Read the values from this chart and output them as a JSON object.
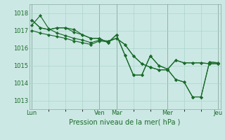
{
  "xlabel": "Pression niveau de la mer( hPa )",
  "background_color": "#cce8e4",
  "grid_color": "#aad4ce",
  "line_color": "#1a6b2a",
  "vline_color": "#556655",
  "ylim": [
    1012.5,
    1018.5
  ],
  "yticks": [
    1013,
    1014,
    1015,
    1016,
    1017,
    1018
  ],
  "day_labels": [
    "Lun",
    "Ven",
    "Mar",
    "Mer",
    "Jeu"
  ],
  "day_tick_positions": [
    0,
    8,
    10,
    16,
    22
  ],
  "vline_positions": [
    0,
    8,
    10,
    16,
    22
  ],
  "n_points": 23,
  "series": [
    [
      1017.3,
      1017.85,
      1017.1,
      1016.85,
      1016.7,
      1016.55,
      1016.45,
      1016.3,
      1016.45,
      1016.4,
      1016.55,
      1016.2,
      1015.55,
      1015.1,
      1014.9,
      1014.75,
      1014.75,
      1015.3,
      1015.15,
      1015.15,
      1015.15,
      1015.1,
      1015.1
    ],
    [
      1017.0,
      1016.85,
      1016.75,
      1016.65,
      1016.55,
      1016.4,
      1016.3,
      1016.2,
      1016.4,
      1016.35,
      1016.55,
      1016.2,
      1015.55,
      1015.1,
      1014.9,
      1014.75,
      1014.75,
      1015.3,
      1015.15,
      1015.15,
      1015.15,
      1015.1,
      1015.1
    ],
    [
      1017.6,
      1017.15,
      1017.05,
      1017.15,
      1017.15,
      1017.05,
      1016.75,
      1016.55,
      1016.55,
      1016.3,
      1016.75,
      1015.6,
      1014.45,
      1014.45,
      1015.55,
      1015.0,
      1014.8,
      1014.2,
      1014.05,
      1013.2,
      1013.2,
      1015.2,
      1015.15
    ],
    [
      1017.6,
      1017.15,
      1017.05,
      1017.15,
      1017.15,
      1016.9,
      1016.75,
      1016.55,
      1016.55,
      1016.3,
      1016.75,
      1015.6,
      1014.45,
      1014.45,
      1015.55,
      1015.0,
      1014.8,
      1014.2,
      1014.05,
      1013.2,
      1013.2,
      1015.2,
      1015.15
    ]
  ]
}
